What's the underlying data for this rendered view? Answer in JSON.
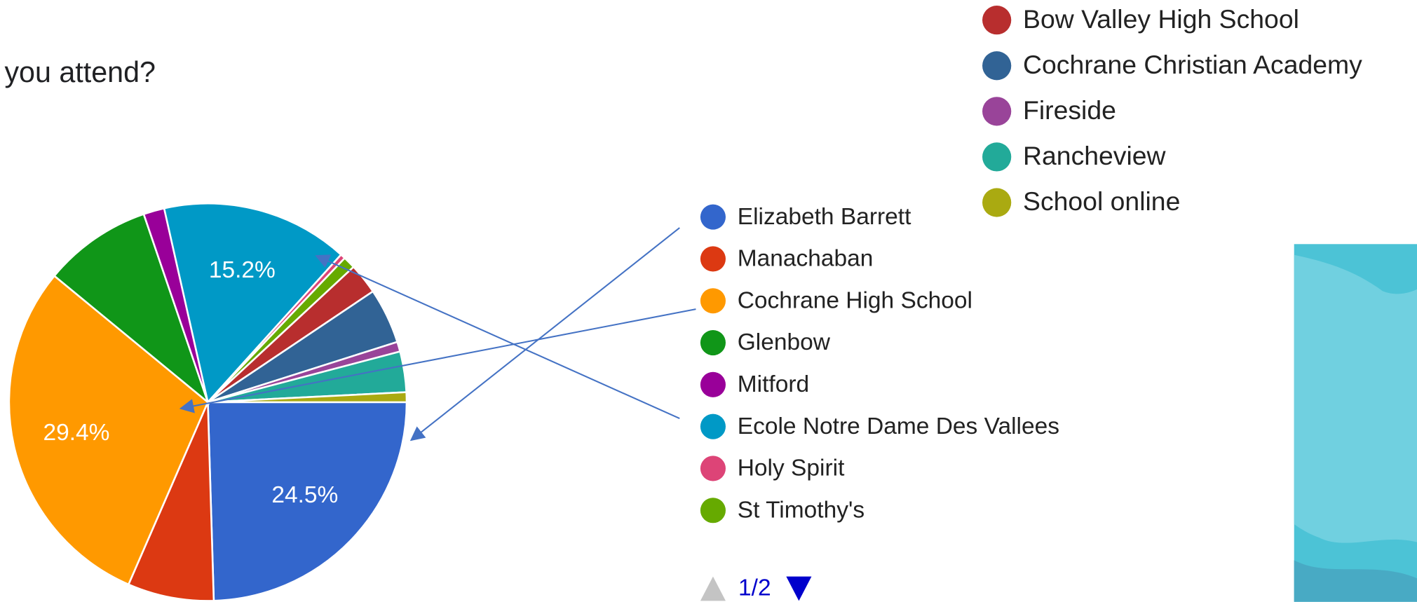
{
  "chart_data": {
    "type": "pie",
    "title": "you attend?",
    "categories": [
      "Elizabeth Barrett",
      "Manachaban",
      "Cochrane High School",
      "Glenbow",
      "Mitford",
      "Ecole Notre Dame Des Vallees",
      "Holy Spirit",
      "St Timothy's",
      "Bow Valley High School",
      "Cochrane Christian Academy",
      "Fireside",
      "Rancheview",
      "School online"
    ],
    "values": [
      24.5,
      7,
      29.4,
      8.8,
      1.7,
      15.2,
      0.4,
      1,
      2.5,
      4.5,
      0.8,
      3.3,
      0.8
    ],
    "value_labels": [
      "24.5%",
      null,
      "29.4%",
      null,
      null,
      "15.2%",
      null,
      null,
      null,
      null,
      null,
      null,
      null
    ],
    "colors": [
      "#3366cc",
      "#dc3912",
      "#ff9900",
      "#109618",
      "#990099",
      "#0099c6",
      "#dd4477",
      "#66aa00",
      "#b82e2e",
      "#316395",
      "#994499",
      "#22aa99",
      "#aaaa11"
    ],
    "legend_page": "1/2"
  }
}
